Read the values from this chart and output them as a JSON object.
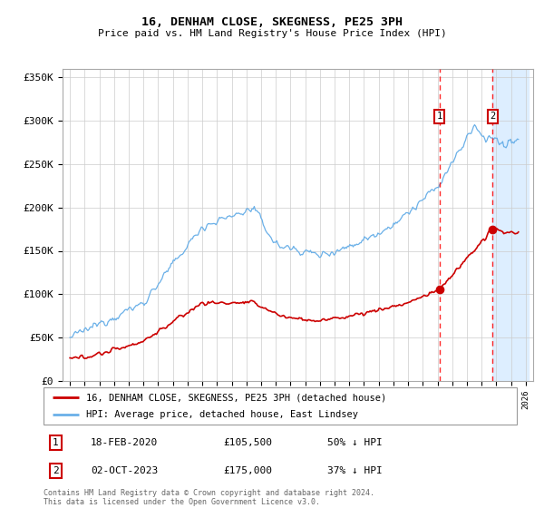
{
  "title": "16, DENHAM CLOSE, SKEGNESS, PE25 3PH",
  "subtitle": "Price paid vs. HM Land Registry's House Price Index (HPI)",
  "legend_line1": "16, DENHAM CLOSE, SKEGNESS, PE25 3PH (detached house)",
  "legend_line2": "HPI: Average price, detached house, East Lindsey",
  "footer1": "Contains HM Land Registry data © Crown copyright and database right 2024.",
  "footer2": "This data is licensed under the Open Government Licence v3.0.",
  "transaction1_date": "18-FEB-2020",
  "transaction1_price": "£105,500",
  "transaction1_hpi": "50% ↓ HPI",
  "transaction2_date": "02-OCT-2023",
  "transaction2_price": "£175,000",
  "transaction2_hpi": "37% ↓ HPI",
  "ylim": [
    0,
    360000
  ],
  "yticks": [
    0,
    50000,
    100000,
    150000,
    200000,
    250000,
    300000,
    350000
  ],
  "ytick_labels": [
    "£0",
    "£50K",
    "£100K",
    "£150K",
    "£200K",
    "£250K",
    "£300K",
    "£350K"
  ],
  "hpi_color": "#6ab0e8",
  "price_color": "#cc0000",
  "transaction1_x": 2020.12,
  "transaction2_x": 2023.75,
  "transaction1_y": 105500,
  "transaction2_y": 175000,
  "shade_start": 2023.75,
  "shade_end": 2026.2,
  "xlim_start": 1994.5,
  "xlim_end": 2026.5
}
